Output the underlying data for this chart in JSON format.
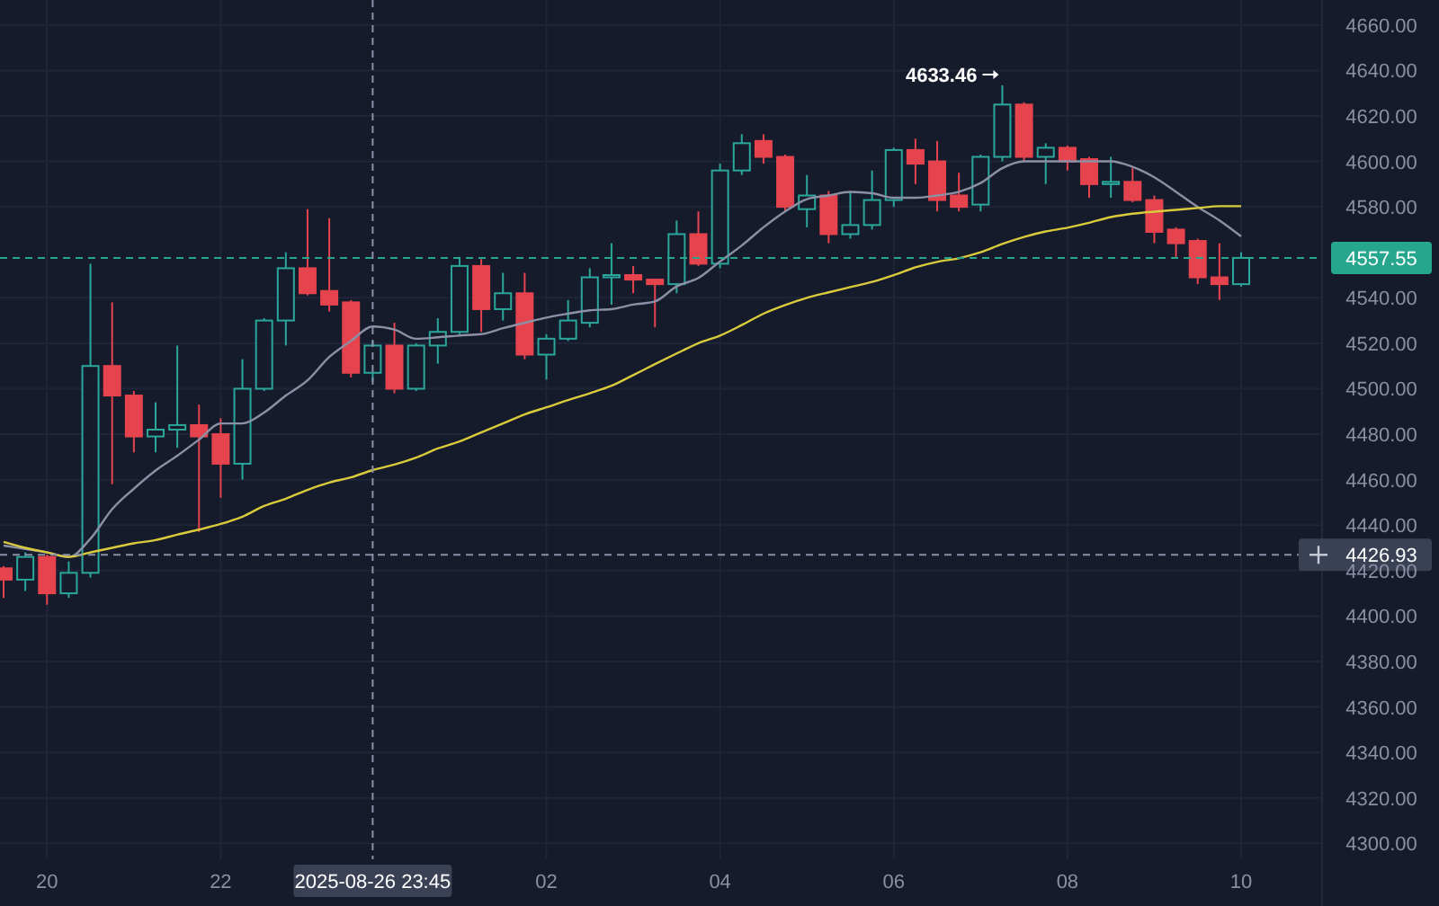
{
  "chart_data": {
    "type": "candlestick",
    "categories": [
      null,
      null,
      "20",
      null,
      null,
      null,
      null,
      null,
      null,
      null,
      "22",
      null,
      null,
      null,
      null,
      null,
      null,
      "2025-08-26 23:45",
      null,
      null,
      null,
      null,
      null,
      null,
      null,
      "02",
      null,
      null,
      null,
      null,
      null,
      null,
      null,
      "04",
      null,
      null,
      null,
      null,
      null,
      null,
      null,
      "06",
      null,
      null,
      null,
      null,
      null,
      null,
      null,
      "08",
      null,
      null,
      null,
      null,
      null,
      null,
      null,
      "10"
    ],
    "ohlc": [
      [
        4421,
        4422,
        4408,
        4416
      ],
      [
        4416,
        4428,
        4411,
        4426
      ],
      [
        4426,
        4427,
        4405,
        4410
      ],
      [
        4410,
        4424,
        4408,
        4419
      ],
      [
        4419,
        4555,
        4417,
        4510
      ],
      [
        4510,
        4538,
        4458,
        4497
      ],
      [
        4497,
        4499,
        4472,
        4479
      ],
      [
        4479,
        4494,
        4472,
        4482
      ],
      [
        4482,
        4519,
        4474,
        4484
      ],
      [
        4484,
        4493,
        4437,
        4479
      ],
      [
        4480,
        4487,
        4452,
        4467
      ],
      [
        4467,
        4513,
        4460,
        4500
      ],
      [
        4500,
        4531,
        4499,
        4530
      ],
      [
        4530,
        4560,
        4519,
        4553
      ],
      [
        4553,
        4579,
        4541,
        4542
      ],
      [
        4543,
        4575,
        4534,
        4537
      ],
      [
        4538,
        4539,
        4505,
        4507
      ],
      [
        4507,
        4521,
        4503,
        4519
      ],
      [
        4519,
        4529,
        4498,
        4500
      ],
      [
        4500,
        4520,
        4499,
        4519
      ],
      [
        4519,
        4531,
        4511,
        4525
      ],
      [
        4525,
        4558,
        4524,
        4554
      ],
      [
        4554,
        4557,
        4525,
        4535
      ],
      [
        4535,
        4551,
        4530,
        4542
      ],
      [
        4542,
        4551,
        4513,
        4515
      ],
      [
        4515,
        4524,
        4504,
        4522
      ],
      [
        4522,
        4539,
        4521,
        4530
      ],
      [
        4529,
        4553,
        4527,
        4549
      ],
      [
        4549,
        4564,
        4537,
        4550
      ],
      [
        4550,
        4554,
        4542,
        4548
      ],
      [
        4548,
        4548,
        4527,
        4546
      ],
      [
        4546,
        4574,
        4542,
        4568
      ],
      [
        4568,
        4578,
        4554,
        4555
      ],
      [
        4555,
        4599,
        4553,
        4596
      ],
      [
        4596,
        4612,
        4594,
        4608
      ],
      [
        4609,
        4612,
        4599,
        4602
      ],
      [
        4602,
        4603,
        4578,
        4580
      ],
      [
        4579,
        4594,
        4571,
        4585
      ],
      [
        4585,
        4587,
        4564,
        4568
      ],
      [
        4568,
        4587,
        4566,
        4572
      ],
      [
        4572,
        4596,
        4570,
        4583
      ],
      [
        4583,
        4606,
        4580,
        4605
      ],
      [
        4605,
        4610,
        4590,
        4599
      ],
      [
        4600,
        4609,
        4578,
        4583
      ],
      [
        4585,
        4595,
        4578,
        4580
      ],
      [
        4581,
        4603,
        4578,
        4602
      ],
      [
        4602,
        4633.46,
        4600,
        4625
      ],
      [
        4625,
        4626,
        4600,
        4602
      ],
      [
        4602,
        4608,
        4590,
        4606
      ],
      [
        4606,
        4607,
        4596,
        4600
      ],
      [
        4601,
        4602,
        4584,
        4590
      ],
      [
        4590,
        4602,
        4584,
        4591
      ],
      [
        4591,
        4597,
        4582,
        4583
      ],
      [
        4583,
        4585,
        4564,
        4569
      ],
      [
        4570,
        4571,
        4558,
        4564
      ],
      [
        4565,
        4566,
        4546,
        4549
      ],
      [
        4549,
        4564,
        4539,
        4546
      ],
      [
        4546,
        4560,
        4545,
        4557.55
      ]
    ],
    "series": [
      {
        "type": "line",
        "color": "#8b90a6",
        "values": [
          4431,
          4429.5,
          4428,
          4426,
          4434,
          4447,
          4456,
          4464,
          4470.5,
          4477.6,
          4484.7,
          4484.7,
          4489.5,
          4497,
          4503.7,
          4514,
          4521,
          4527.4,
          4526,
          4522,
          4522.6,
          4523.4,
          4524,
          4526.6,
          4529,
          4531.3,
          4533,
          4534.5,
          4535,
          4537,
          4538.4,
          4545,
          4548.7,
          4556,
          4563,
          4571,
          4578,
          4583.4,
          4585,
          4586.6,
          4586,
          4584,
          4584,
          4585,
          4586.6,
          4590.5,
          4597,
          4600,
          4600,
          4600,
          4600,
          4600,
          4597.6,
          4593,
          4586.6,
          4580,
          4574,
          4567
        ]
      },
      {
        "type": "line",
        "color": "#d9cb3c",
        "values": [
          4432.6,
          4430,
          4428,
          4426,
          4428,
          4430,
          4432,
          4433.4,
          4435.8,
          4438,
          4440.5,
          4443.7,
          4448.4,
          4451.6,
          4455.5,
          4458.7,
          4461,
          4464.2,
          4466.6,
          4469.7,
          4473.7,
          4476.8,
          4480.8,
          4484.7,
          4488.7,
          4491.8,
          4495,
          4498,
          4501.3,
          4506,
          4510.8,
          4515.5,
          4520,
          4523.4,
          4528,
          4533,
          4536.8,
          4540,
          4542.4,
          4544.7,
          4547,
          4550,
          4553.4,
          4555.8,
          4557.4,
          4560,
          4563.7,
          4566.8,
          4569.2,
          4570.8,
          4573,
          4575.5,
          4577,
          4577.9,
          4578.7,
          4579.5,
          4580.3,
          4580.3
        ]
      }
    ],
    "ylim": [
      4293,
      4671
    ],
    "yticks": [
      {
        "value": 4300,
        "label": "4300.00"
      },
      {
        "value": 4320,
        "label": "4320.00"
      },
      {
        "value": 4340,
        "label": "4340.00"
      },
      {
        "value": 4360,
        "label": "4360.00"
      },
      {
        "value": 4380,
        "label": "4380.00"
      },
      {
        "value": 4400,
        "label": "4400.00"
      },
      {
        "value": 4420,
        "label": "4420.00"
      },
      {
        "value": 4440,
        "label": "4440.00"
      },
      {
        "value": 4460,
        "label": "4460.00"
      },
      {
        "value": 4480,
        "label": "4480.00"
      },
      {
        "value": 4500,
        "label": "4500.00"
      },
      {
        "value": 4520,
        "label": "4520.00"
      },
      {
        "value": 4540,
        "label": "4540.00"
      },
      {
        "value": 4580,
        "label": "4580.00"
      },
      {
        "value": 4600,
        "label": "4600.00"
      },
      {
        "value": 4620,
        "label": "4620.00"
      },
      {
        "value": 4640,
        "label": "4640.00"
      },
      {
        "value": 4660,
        "label": "4660.00"
      }
    ],
    "grid": true,
    "ref_lines": [
      {
        "axis": "y",
        "value": 4557.55,
        "label": "4557.55",
        "color": "#26a68c",
        "line_style": "dashed"
      },
      {
        "axis": "y",
        "value": 4426.93,
        "label": "4426.93",
        "color": "#8b90a6",
        "line_style": "dashed"
      },
      {
        "axis": "x",
        "value": "2025-08-26 23:45",
        "color": "#8b90a6",
        "line_style": "dashed"
      }
    ],
    "annotations": [
      "4633.46"
    ]
  }
}
